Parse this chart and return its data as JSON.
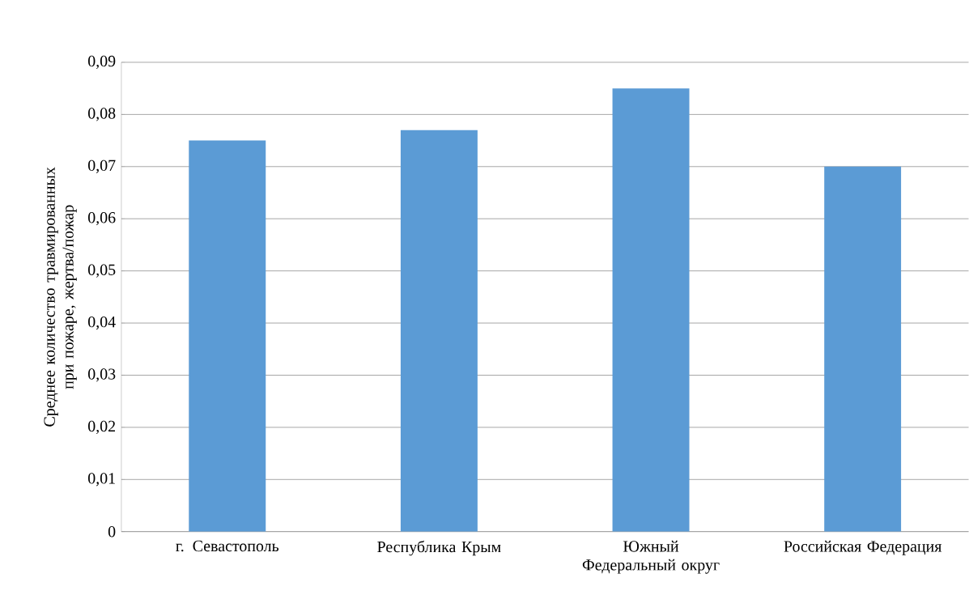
{
  "chart_data": {
    "type": "bar",
    "ylabel": "Среднее количество травмированных при пожаре, жертва/пожар",
    "categories": [
      "г. Севастополь",
      "Республика Крым",
      "Южный Федеральный округ",
      "Российская Федерация"
    ],
    "values": [
      0.075,
      0.077,
      0.085,
      0.07
    ],
    "color": "#5b9bd5",
    "grid": "y",
    "ylim": [
      0,
      0.09
    ],
    "yticks": [
      0,
      {
        "value": 0.01,
        "label": "0,01"
      },
      {
        "value": 0.02,
        "label": "0,02"
      },
      {
        "value": 0.03,
        "label": "0,03"
      },
      {
        "value": 0.04,
        "label": "0,04"
      },
      {
        "value": 0.05,
        "label": "0,05"
      },
      {
        "value": 0.06,
        "label": "0,06"
      },
      {
        "value": 0.07,
        "label": "0,07"
      },
      {
        "value": 0.08,
        "label": "0,08"
      },
      {
        "value": 0.09,
        "label": "0,09"
      }
    ]
  }
}
